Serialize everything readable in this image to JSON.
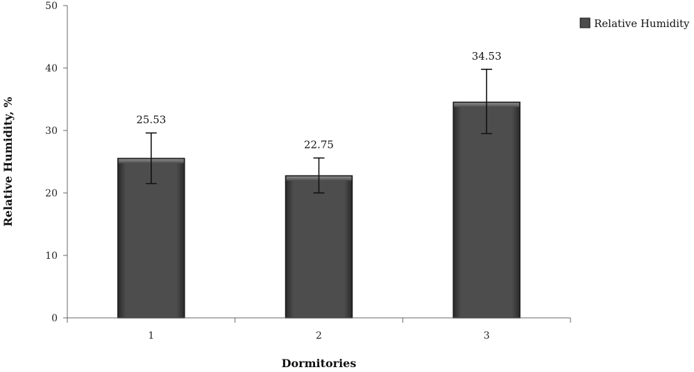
{
  "chart_data": {
    "type": "bar",
    "categories": [
      "1",
      "2",
      "3"
    ],
    "series": [
      {
        "name": "Relative Humidity",
        "values": [
          25.53,
          22.75,
          34.53
        ],
        "error_low": [
          21.5,
          20.0,
          29.5
        ],
        "error_high": [
          29.6,
          25.6,
          39.8
        ],
        "value_labels": [
          "25.53",
          "22.75",
          "34.53"
        ]
      }
    ],
    "xlabel": "Dormitories",
    "ylabel": "Relative Humidity, %",
    "ylim": [
      0,
      50
    ],
    "yticks": [
      0,
      10,
      20,
      30,
      40,
      50
    ],
    "grid": false,
    "legend": "top-right",
    "colors": {
      "bar": "#4a4a4a",
      "bar_edge": "#1a1a1a",
      "axis": "#666666"
    }
  }
}
